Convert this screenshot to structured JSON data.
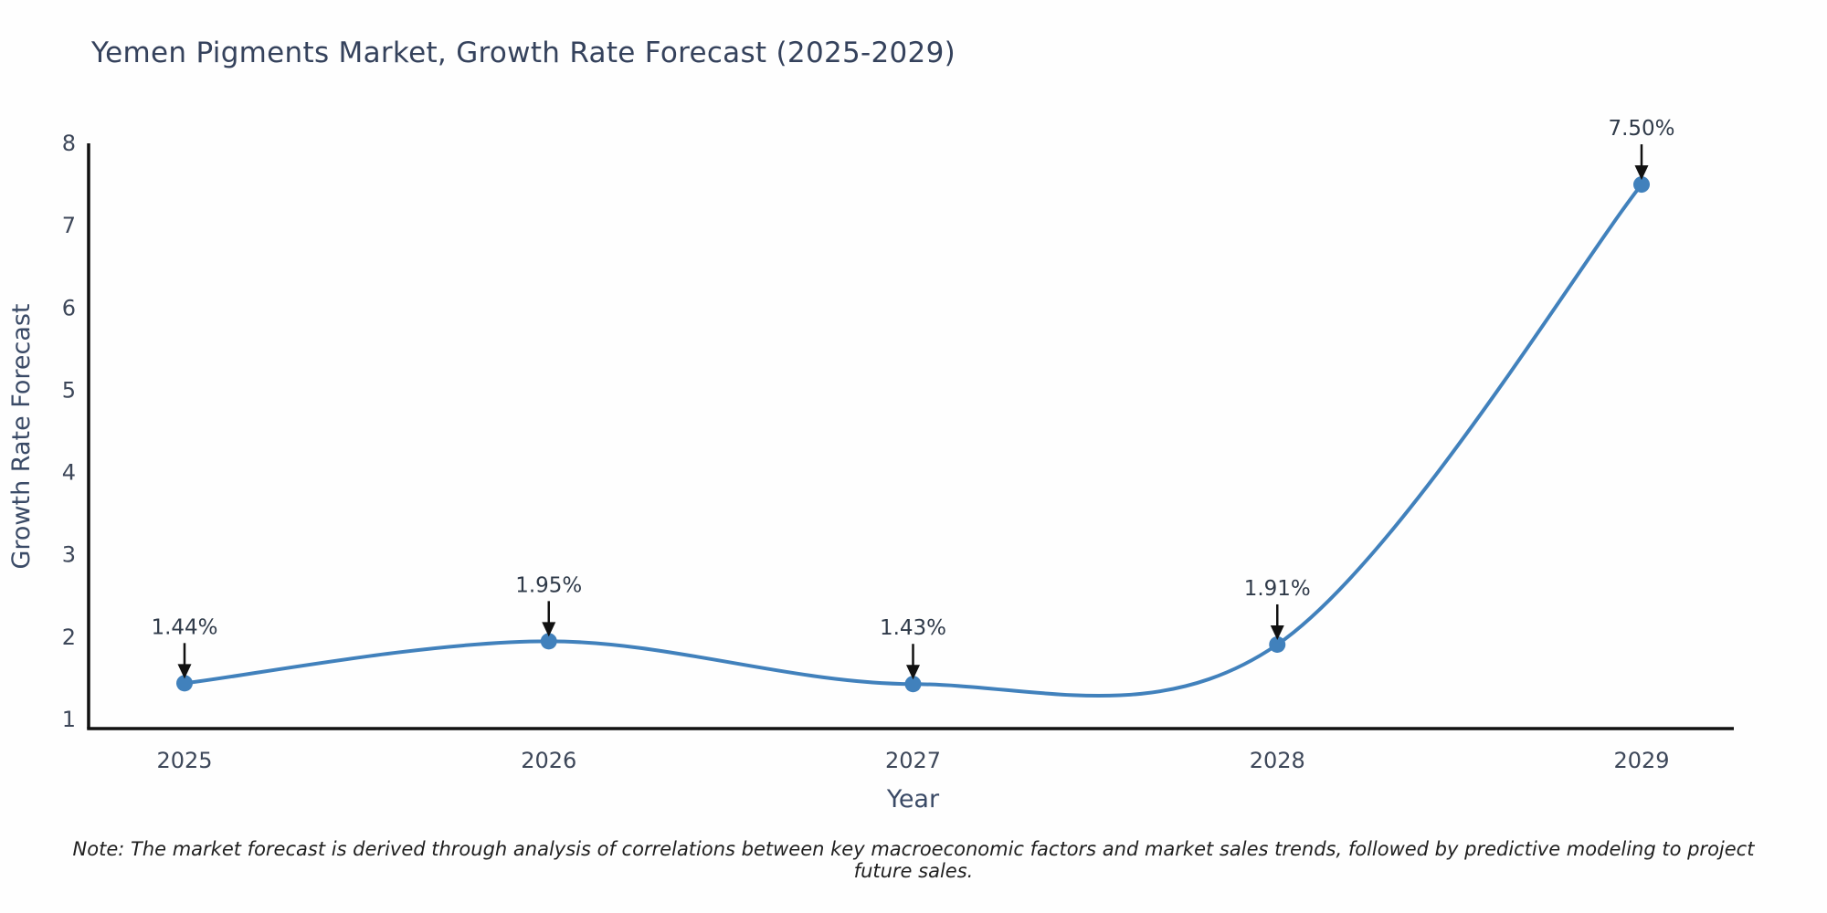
{
  "note": "Note: The market forecast is derived through analysis of correlations between key macroeconomic factors and market sales trends, followed by predictive modeling to project future sales.",
  "chart_data": {
    "type": "line",
    "title": "Yemen Pigments Market, Growth Rate Forecast (2025-2029)",
    "x": [
      "2025",
      "2026",
      "2027",
      "2028",
      "2029"
    ],
    "values": [
      1.44,
      1.95,
      1.43,
      1.91,
      7.5
    ],
    "point_labels": [
      "1.44%",
      "1.95%",
      "1.43%",
      "1.91%",
      "7.50%"
    ],
    "xlabel": "Year",
    "ylabel": "Growth Rate Forecast",
    "ylim": [
      1,
      8
    ],
    "yticks": [
      1,
      2,
      3,
      4,
      5,
      6,
      7,
      8
    ],
    "grid": false,
    "legend": false,
    "smooth": true,
    "annotation_arrows": "down",
    "colors": {
      "line": "#4181bc",
      "marker": "#4181bc",
      "axis": "#111111",
      "tick_text": "#3d4759",
      "axis_label": "#3a4a66",
      "annotation_text": "#2f3a49",
      "arrow": "#111111"
    }
  }
}
